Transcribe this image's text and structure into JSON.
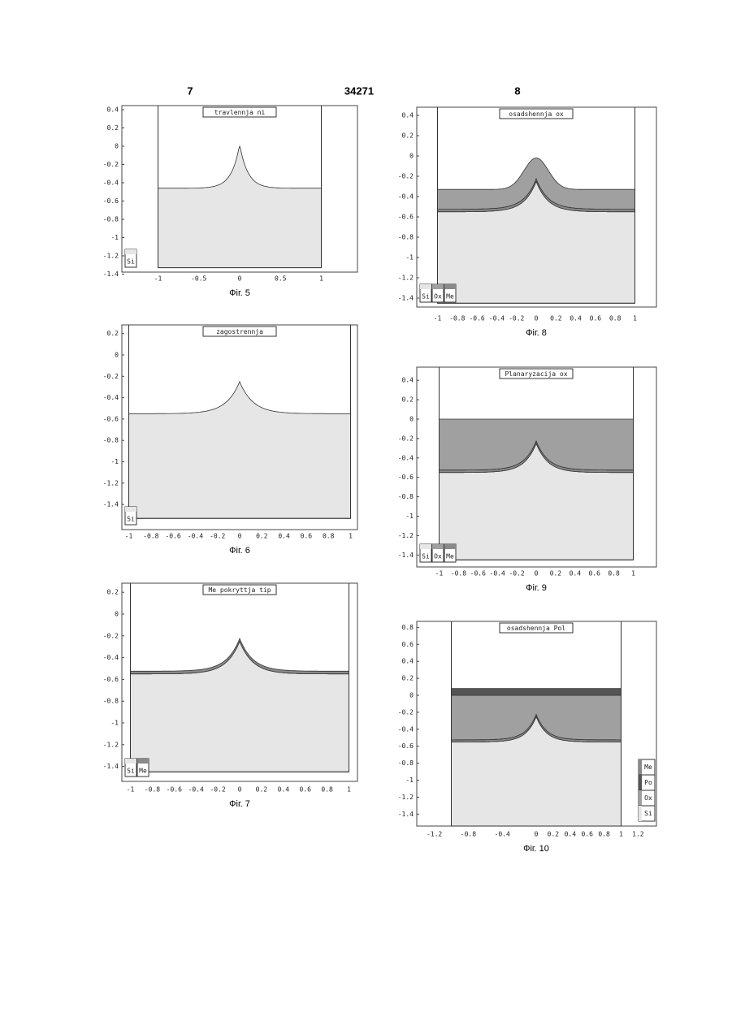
{
  "header": {
    "left": "7",
    "center": "34271",
    "right": "8"
  },
  "figures": [
    {
      "title": "travlennja ni",
      "caption": "Фіг. 5",
      "yticks": [
        "0.4",
        "0.2",
        "0",
        "-0.2",
        "-0.4",
        "-0.6",
        "-0.8",
        "-1",
        "-1.2",
        "-1.4"
      ],
      "xticks": [
        "-1",
        "-0.5",
        "0",
        "0.5",
        "1"
      ],
      "legend": [
        "Si"
      ]
    },
    {
      "title": "zagostrennja",
      "caption": "Фіг. 6",
      "yticks": [
        "0.2",
        "0",
        "-0.2",
        "-0.4",
        "-0.6",
        "-0.8",
        "-1",
        "-1.2",
        "-1.4"
      ],
      "xticks": [
        "-1",
        "-0.8",
        "-0.6",
        "-0.4",
        "-0.2",
        "0",
        "0.2",
        "0.4",
        "0.6",
        "0.8",
        "1"
      ],
      "legend": [
        "Si"
      ]
    },
    {
      "title": "Me pokryttja tip",
      "caption": "Фіг. 7",
      "yticks": [
        "0.2",
        "0",
        "-0.2",
        "-0.4",
        "-0.6",
        "-0.8",
        "-1",
        "-1.2",
        "-1.4"
      ],
      "xticks": [
        "-1",
        "-0.8",
        "-0.6",
        "-0.4",
        "-0.2",
        "0",
        "0.2",
        "0.4",
        "0.6",
        "0.8",
        "1"
      ],
      "legend": [
        "Si",
        "Me"
      ]
    },
    {
      "title": "osadshennja ox",
      "caption": "Фіг. 8",
      "yticks": [
        "0.4",
        "0.2",
        "0",
        "-0.2",
        "-0.4",
        "-0.6",
        "-0.8",
        "-1",
        "-1.2",
        "-1.4"
      ],
      "xticks": [
        "-1",
        "-0.8",
        "-0.6",
        "-0.4",
        "-0.2",
        "0",
        "0.2",
        "0.4",
        "0.6",
        "0.8",
        "1"
      ],
      "legend": [
        "Si",
        "Ox",
        "Me"
      ]
    },
    {
      "title": "Planaryzacija ox",
      "caption": "Фіг. 9",
      "yticks": [
        "0.4",
        "0.2",
        "0",
        "-0.2",
        "-0.4",
        "-0.6",
        "-0.8",
        "-1",
        "-1.2",
        "-1.4"
      ],
      "xticks": [
        "-1",
        "-0.8",
        "-0.6",
        "-0.4",
        "-0.2",
        "0",
        "0.2",
        "0.4",
        "0.6",
        "0.8",
        "1"
      ],
      "legend": [
        "Si",
        "Ox",
        "Me"
      ]
    },
    {
      "title": "osadshennja Pol",
      "caption": "Фіг. 10",
      "yticks": [
        "0.8",
        "0.6",
        "0.4",
        "0.2",
        "0",
        "-0.2",
        "-0.4",
        "-0.6",
        "-0.8",
        "-1",
        "-1.2",
        "-1.4"
      ],
      "xticks": [
        "-1.2",
        "-0.8",
        "-0.4",
        "0",
        "0.2",
        "0.4",
        "0.6",
        "0.8",
        "1",
        "1.2"
      ],
      "legend": [
        "Me",
        "Po",
        "Ox",
        "Si"
      ]
    }
  ]
}
